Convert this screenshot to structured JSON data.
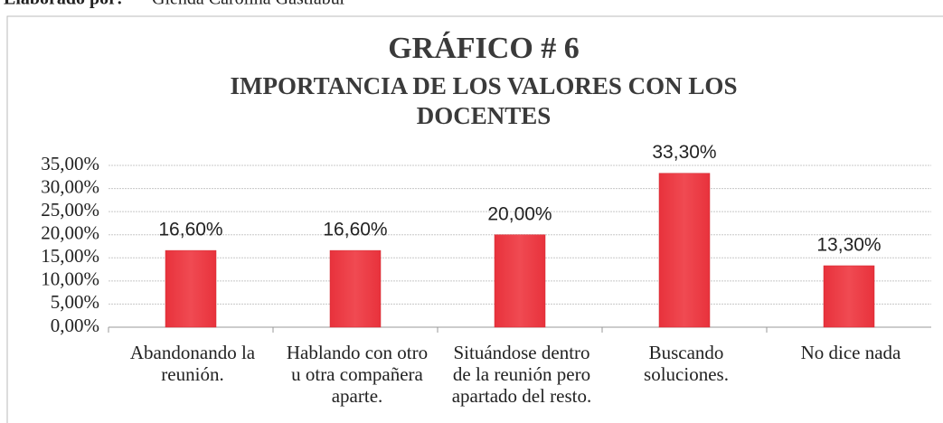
{
  "source_label": "Elaborado por:",
  "source_name": "Glenda Carolina Gastiabur",
  "chart_data": {
    "type": "bar",
    "title": "GRÁFICO # 6",
    "subtitle": "IMPORTANCIA DE LOS VALORES CON LOS\nDOCENTES",
    "categories": [
      "Abandonando la\nreunión.",
      "Hablando con otro\nu otra compañera\naparte.",
      "Situándose dentro\nde la reunión pero\napartado del resto.",
      "Buscando\nsoluciones.",
      "No dice nada"
    ],
    "values": [
      16.6,
      16.6,
      20,
      33.3,
      13.3
    ],
    "value_labels": [
      "16,60%",
      "16,60%",
      "20,00%",
      "33,30%",
      "13,30%"
    ],
    "color": "#e8323c",
    "ylim": [
      0,
      35
    ],
    "yticks": [
      {
        "value": 0,
        "label": "0,00%"
      },
      {
        "value": 5,
        "label": "5,00%"
      },
      {
        "value": 10,
        "label": "10,00%"
      },
      {
        "value": 15,
        "label": "15,00%"
      },
      {
        "value": 20,
        "label": "20,00%"
      },
      {
        "value": 25,
        "label": "25,00%"
      },
      {
        "value": 30,
        "label": "30,00%"
      },
      {
        "value": 35,
        "label": "35,00%"
      }
    ],
    "grid": true
  }
}
